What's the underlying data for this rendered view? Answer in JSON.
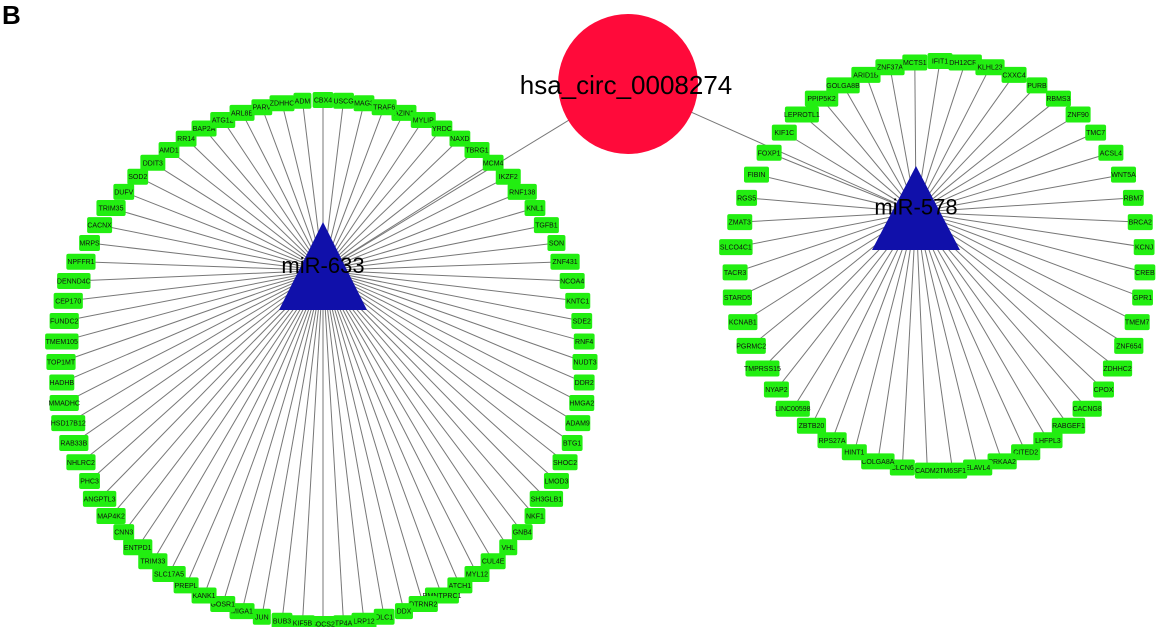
{
  "panel_label": "B",
  "colors": {
    "gene_node": "#22ee11",
    "mirna_node": "#1010aa",
    "circ_node": "#ff0a3a",
    "edge": "#777777"
  },
  "circ_rna": {
    "label": "hsa_circ_0008274"
  },
  "hubs": [
    {
      "id": "mir633",
      "label": "miR-633",
      "genes": [
        "AZIN1",
        "MYLIP",
        "YRDC",
        "NAXD",
        "TBRG1",
        "MCM4",
        "IKZF2",
        "RNF138",
        "KNL1",
        "TGFB1",
        "SON",
        "ZNF431",
        "NCOA4",
        "KNTC1",
        "SDE2",
        "RNF4",
        "NUDT3",
        "DDR2",
        "HMGA2",
        "ADAM9",
        "BTG1",
        "SHOC2",
        "LMOD3",
        "SH3GLB1",
        "NKF1",
        "GNB4",
        "VHL",
        "CUL4E",
        "MYL12",
        "ATCH1",
        "RMNTPRC1",
        "DTRNR2",
        "DDX",
        "DLC1",
        "LRP12",
        "TP4A",
        "SOCS2",
        "KIF5B",
        "BUB3",
        "JUN",
        "MIGA1",
        "GOSR1",
        "KANK1",
        "PREPL",
        "SLC17A5",
        "TRIM33",
        "ENTPD1",
        "CNN3",
        "MAP4K2",
        "ANGPTL3",
        "PHC3",
        "NHLRC2",
        "RAB33B",
        "HSD17B12",
        "MMADHC",
        "HADHB",
        "TOP1MT",
        "TMEM105",
        "FUNDC2",
        "CEP170",
        "DENND4C",
        "NPFFR1",
        "MRPS",
        "CACNX",
        "TRIM35",
        "DUFV",
        "SOD2",
        "DDIT3",
        "AMD1",
        "RR14",
        "BAP2A",
        "ATG12",
        "ARL8B",
        "PARV",
        "ZDHHC",
        "ADM",
        "CBX4",
        "USCG",
        "MAG3",
        "TRAF6"
      ]
    },
    {
      "id": "mir578",
      "label": "miR-578",
      "genes": [
        "IFIT1",
        "DH12CR1",
        "KLHL23",
        "CXXC4",
        "PURB",
        "RBMS3",
        "ZNF90",
        "TMC7",
        "ACSL4",
        "WNT5A",
        "RBM7",
        "BRCA2",
        "KCNJ",
        "CREB",
        "GPR1",
        "TMEM7",
        "ZNF654",
        "ZDHHC2",
        "CPOX",
        "CACNG8",
        "RABGEF1",
        "LHFPL3",
        "CITED2",
        "PRKAA2",
        "ELAVL4",
        "TM6SF1",
        "CADM2",
        "CLCN6",
        "COLGA8A",
        "HINT1",
        "RPS27A",
        "ZBTB20",
        "LINC00598",
        "NYAP2",
        "TMPRSS15",
        "PGRMC2",
        "KCNAB1",
        "STARD5",
        "TACR3",
        "SLCO4C1",
        "ZMAT3",
        "RGS5",
        "FIBIN",
        "FOXP1",
        "KIF1C",
        "LEPROTL1",
        "PPIP5K2",
        "GOLGA8B",
        "ARID1B",
        "ZNF37A",
        "MCTS1"
      ]
    }
  ]
}
